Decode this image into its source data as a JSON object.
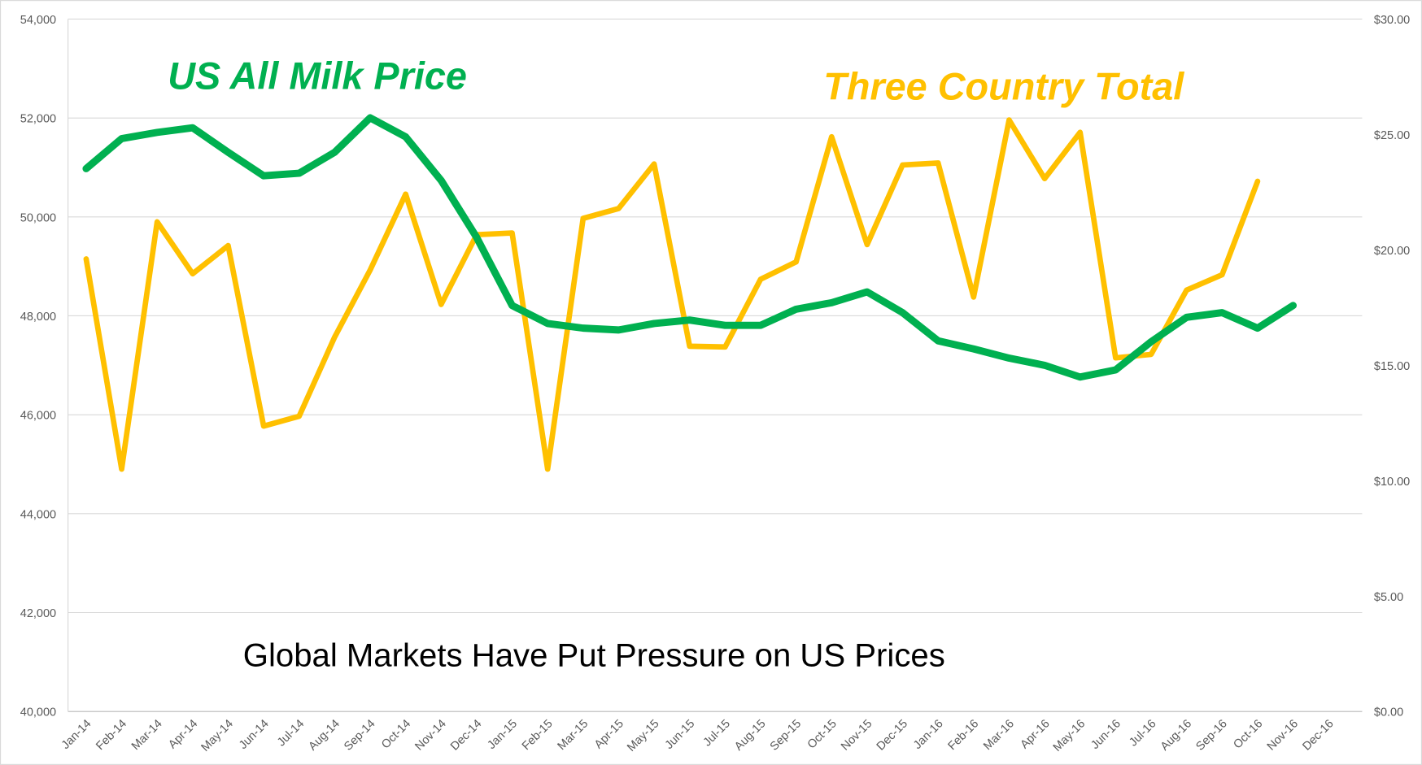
{
  "chart_data": {
    "type": "line",
    "title": "Global Markets Have Put Pressure on US Prices",
    "categories": [
      "Jan-14",
      "Feb-14",
      "Mar-14",
      "Apr-14",
      "May-14",
      "Jun-14",
      "Jul-14",
      "Aug-14",
      "Sep-14",
      "Oct-14",
      "Nov-14",
      "Dec-14",
      "Jan-15",
      "Feb-15",
      "Mar-15",
      "Apr-15",
      "May-15",
      "Jun-15",
      "Jul-15",
      "Aug-15",
      "Sep-15",
      "Oct-15",
      "Nov-15",
      "Dec-15",
      "Jan-16",
      "Feb-16",
      "Mar-16",
      "Apr-16",
      "May-16",
      "Jun-16",
      "Jul-16",
      "Aug-16",
      "Sep-16",
      "Oct-16",
      "Nov-16",
      "Dec-16"
    ],
    "series": [
      {
        "name": "Three Country Total",
        "color": "#ffc000",
        "axis": "y",
        "values": [
          49150,
          44900,
          49900,
          48850,
          49420,
          45770,
          45970,
          47570,
          48925,
          50460,
          48230,
          49640,
          49675,
          44900,
          49970,
          50170,
          51070,
          47385,
          47370,
          48740,
          49090,
          51620,
          49440,
          51050,
          51090,
          48380,
          51960,
          50775,
          51710,
          47150,
          47220,
          48520,
          48830,
          50720,
          null,
          null
        ]
      },
      {
        "name": "US All Milk Price",
        "color": "#00b050",
        "axis": "y2",
        "values": [
          23.52,
          24.82,
          25.09,
          25.29,
          24.23,
          23.21,
          23.32,
          24.23,
          25.72,
          24.9,
          23.01,
          20.54,
          17.59,
          16.81,
          16.61,
          16.53,
          16.81,
          16.96,
          16.73,
          16.73,
          17.43,
          17.71,
          18.18,
          17.28,
          16.06,
          15.71,
          15.31,
          15.0,
          14.49,
          14.8,
          16.02,
          17.08,
          17.28,
          16.61,
          17.59,
          null
        ]
      }
    ],
    "ylim": [
      40000,
      54000
    ],
    "yticks": [
      {
        "value": 40000,
        "label": "40,000"
      },
      {
        "value": 42000,
        "label": "42,000"
      },
      {
        "value": 44000,
        "label": "44,000"
      },
      {
        "value": 46000,
        "label": "46,000"
      },
      {
        "value": 48000,
        "label": "48,000"
      },
      {
        "value": 50000,
        "label": "50,000"
      },
      {
        "value": 52000,
        "label": "52,000"
      },
      {
        "value": 54000,
        "label": "54,000"
      }
    ],
    "y2lim": [
      0,
      30
    ],
    "y2ticks": [
      {
        "value": 0,
        "label": "$0.00"
      },
      {
        "value": 5,
        "label": "$5.00"
      },
      {
        "value": 10,
        "label": "$10.00"
      },
      {
        "value": 15,
        "label": "$15.00"
      },
      {
        "value": 20,
        "label": "$20.00"
      },
      {
        "value": 25,
        "label": "$25.00"
      },
      {
        "value": 30,
        "label": "$30.00"
      }
    ],
    "grid": true
  }
}
